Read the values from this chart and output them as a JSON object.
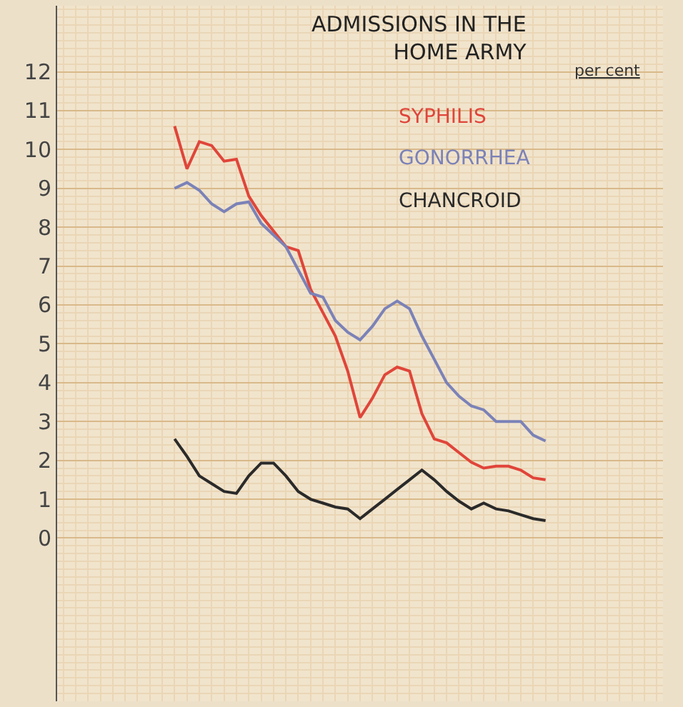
{
  "chart_data": {
    "type": "line",
    "title": "ADMISSIONS IN THE\nHOME ARMY",
    "ylabel": "per cent",
    "categories": [
      null,
      null,
      null,
      null,
      null,
      null,
      null,
      null,
      null,
      null,
      null,
      null,
      null,
      null,
      null,
      null,
      null,
      null,
      null,
      null,
      null,
      null,
      null,
      null,
      null,
      null,
      null,
      null,
      null,
      null,
      null,
      null,
      null,
      null,
      null,
      null,
      null,
      null,
      null,
      null,
      null,
      null,
      null,
      null,
      null,
      null,
      null,
      null,
      null
    ],
    "series": [
      {
        "name": "SYPHILIS",
        "color": "#e0453a",
        "values": [
          null,
          null,
          null,
          null,
          null,
          null,
          null,
          null,
          null,
          10.6,
          9.5,
          10.2,
          10.1,
          9.7,
          9.75,
          8.8,
          8.3,
          7.9,
          7.5,
          7.4,
          6.4,
          5.8,
          5.2,
          4.3,
          3.1,
          3.6,
          4.2,
          4.4,
          4.3,
          3.2,
          2.55,
          2.45,
          2.2,
          1.95,
          1.8,
          1.85,
          1.85,
          1.75,
          1.55,
          1.5,
          null,
          null,
          null,
          null,
          null,
          null,
          null,
          null,
          null
        ]
      },
      {
        "name": "GONORRHEA",
        "color": "#7b82b8",
        "values": [
          null,
          null,
          null,
          null,
          null,
          null,
          null,
          null,
          null,
          9.0,
          9.15,
          8.95,
          8.6,
          8.4,
          8.6,
          8.65,
          8.1,
          7.8,
          7.5,
          6.9,
          6.3,
          6.2,
          5.6,
          5.3,
          5.1,
          5.45,
          5.9,
          6.1,
          5.9,
          5.2,
          4.6,
          4.0,
          3.65,
          3.4,
          3.3,
          3.0,
          3.0,
          3.0,
          2.65,
          2.5,
          null,
          null,
          null,
          null,
          null,
          null,
          null,
          null,
          null
        ]
      },
      {
        "name": "CHANCROID",
        "color": "#2a2a2a",
        "values": [
          null,
          null,
          null,
          null,
          null,
          null,
          null,
          null,
          null,
          2.55,
          2.1,
          1.6,
          1.4,
          1.2,
          1.15,
          1.6,
          1.93,
          1.93,
          1.6,
          1.2,
          1.0,
          0.9,
          0.8,
          0.75,
          0.5,
          0.75,
          1.0,
          1.25,
          1.5,
          1.75,
          1.5,
          1.2,
          0.95,
          0.75,
          0.9,
          0.75,
          0.7,
          0.6,
          0.5,
          0.45,
          null,
          null,
          null,
          null,
          null,
          null,
          null,
          null,
          null
        ]
      }
    ],
    "ylim": [
      -4.2,
      13.7
    ],
    "yticks": [
      0,
      1,
      2,
      3,
      4,
      5,
      6,
      7,
      8,
      9,
      10,
      11,
      12
    ],
    "grid": true,
    "legend": false,
    "tick_labels": "y",
    "marker": "none",
    "line_style": "solid"
  }
}
